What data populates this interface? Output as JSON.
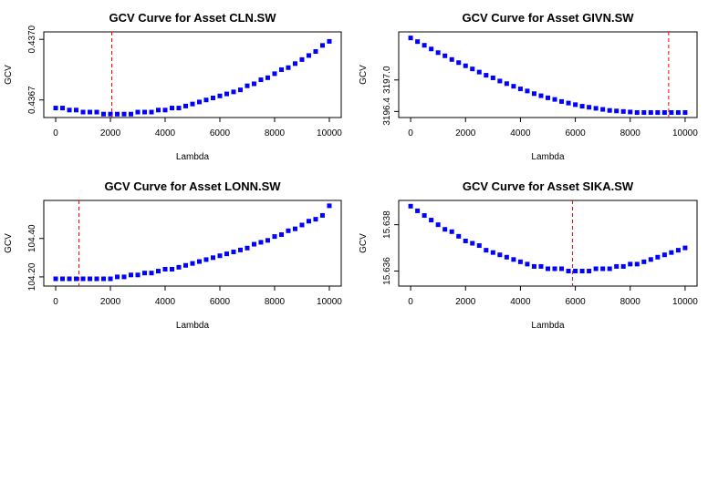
{
  "chart_data": [
    {
      "type": "scatter",
      "title": "GCV Curve for Asset CLN.SW",
      "xlabel": "Lambda",
      "ylabel": "GCV",
      "xlim": [
        0,
        10000
      ],
      "ylim": [
        0.43663,
        0.43702
      ],
      "x_ticks": [
        "0",
        "2000",
        "4000",
        "6000",
        "8000",
        "10000"
      ],
      "y_ticks": [
        {
          "value": 0.4367,
          "label": "0.4367"
        },
        {
          "value": 0.437,
          "label": "0.4370"
        }
      ],
      "point_color": "#0000ff",
      "vline": {
        "x": 2050,
        "color": "#ff0000"
      },
      "series": [
        {
          "x": [
            0,
            250,
            500,
            750,
            1000,
            1250,
            1500,
            1750,
            2000,
            2250,
            2500,
            2750,
            3000,
            3250,
            3500,
            3750,
            4000,
            4250,
            4500,
            4750,
            5000,
            5250,
            5500,
            5750,
            6000,
            6250,
            6500,
            6750,
            7000,
            7250,
            7500,
            7750,
            8000,
            8250,
            8500,
            8750,
            9000,
            9250,
            9500,
            9750,
            10000
          ],
          "y": [
            0.43666,
            0.43666,
            0.43665,
            0.43665,
            0.43664,
            0.43664,
            0.43664,
            0.43663,
            0.43663,
            0.43663,
            0.43663,
            0.43663,
            0.43664,
            0.43664,
            0.43664,
            0.43665,
            0.43665,
            0.43666,
            0.43666,
            0.43667,
            0.43668,
            0.43669,
            0.4367,
            0.43671,
            0.43672,
            0.43673,
            0.43674,
            0.43675,
            0.43677,
            0.43678,
            0.4368,
            0.43681,
            0.43683,
            0.43685,
            0.43686,
            0.43688,
            0.4369,
            0.43692,
            0.43694,
            0.43697,
            0.43699
          ]
        }
      ]
    },
    {
      "type": "scatter",
      "title": "GCV Curve for Asset GIVN.SW",
      "xlabel": "Lambda",
      "ylabel": "GCV",
      "xlim": [
        0,
        10000
      ],
      "ylim": [
        3196.35,
        3197.85
      ],
      "x_ticks": [
        "0",
        "2000",
        "4000",
        "6000",
        "8000",
        "10000"
      ],
      "y_ticks": [
        {
          "value": 3196.4,
          "label": "3196.4"
        },
        {
          "value": 3197.0,
          "label": "3197.0"
        }
      ],
      "point_color": "#0000ff",
      "vline": {
        "x": 9400,
        "color": "#ff0000"
      },
      "series": [
        {
          "x": [
            0,
            250,
            500,
            750,
            1000,
            1250,
            1500,
            1750,
            2000,
            2250,
            2500,
            2750,
            3000,
            3250,
            3500,
            3750,
            4000,
            4250,
            4500,
            4750,
            5000,
            5250,
            5500,
            5750,
            6000,
            6250,
            6500,
            6750,
            7000,
            7250,
            7500,
            7750,
            8000,
            8250,
            8500,
            8750,
            9000,
            9250,
            9500,
            9750,
            10000
          ],
          "y": [
            3197.8,
            3197.73,
            3197.66,
            3197.59,
            3197.52,
            3197.46,
            3197.39,
            3197.33,
            3197.27,
            3197.21,
            3197.15,
            3197.09,
            3197.04,
            3196.98,
            3196.93,
            3196.88,
            3196.83,
            3196.79,
            3196.74,
            3196.7,
            3196.66,
            3196.63,
            3196.59,
            3196.56,
            3196.53,
            3196.5,
            3196.48,
            3196.46,
            3196.44,
            3196.42,
            3196.41,
            3196.4,
            3196.39,
            3196.38,
            3196.38,
            3196.38,
            3196.38,
            3196.38,
            3196.38,
            3196.38,
            3196.38
          ]
        }
      ]
    },
    {
      "type": "scatter",
      "title": "GCV Curve for Asset LONN.SW",
      "xlabel": "Lambda",
      "ylabel": "GCV",
      "xlim": [
        0,
        10000
      ],
      "ylim": [
        104.17,
        104.58
      ],
      "x_ticks": [
        "0",
        "2000",
        "4000",
        "6000",
        "8000",
        "10000"
      ],
      "y_ticks": [
        {
          "value": 104.2,
          "label": "104.20"
        },
        {
          "value": 104.4,
          "label": "104.40"
        }
      ],
      "point_color": "#0000ff",
      "vline": {
        "x": 850,
        "color": "#ff0000"
      },
      "series": [
        {
          "x": [
            0,
            250,
            500,
            750,
            1000,
            1250,
            1500,
            1750,
            2000,
            2250,
            2500,
            2750,
            3000,
            3250,
            3500,
            3750,
            4000,
            4250,
            4500,
            4750,
            5000,
            5250,
            5500,
            5750,
            6000,
            6250,
            6500,
            6750,
            7000,
            7250,
            7500,
            7750,
            8000,
            8250,
            8500,
            8750,
            9000,
            9250,
            9500,
            9750,
            10000
          ],
          "y": [
            104.19,
            104.19,
            104.19,
            104.19,
            104.19,
            104.19,
            104.19,
            104.19,
            104.19,
            104.2,
            104.2,
            104.21,
            104.21,
            104.22,
            104.22,
            104.23,
            104.24,
            104.24,
            104.25,
            104.26,
            104.27,
            104.28,
            104.29,
            104.3,
            104.31,
            104.32,
            104.33,
            104.34,
            104.35,
            104.37,
            104.38,
            104.39,
            104.41,
            104.42,
            104.44,
            104.45,
            104.47,
            104.49,
            104.5,
            104.52,
            104.57
          ]
        }
      ]
    },
    {
      "type": "scatter",
      "title": "GCV Curve for Asset SIKA.SW",
      "xlabel": "Lambda",
      "ylabel": "GCV",
      "xlim": [
        0,
        10000
      ],
      "ylim": [
        15.6355,
        15.6389
      ],
      "x_ticks": [
        "0",
        "2000",
        "4000",
        "6000",
        "8000",
        "10000"
      ],
      "y_ticks": [
        {
          "value": 15.636,
          "label": "15.636"
        },
        {
          "value": 15.638,
          "label": "15.638"
        }
      ],
      "point_color": "#0000ff",
      "vline": {
        "x": 5900,
        "color": "#ff0000"
      },
      "series": [
        {
          "x": [
            0,
            250,
            500,
            750,
            1000,
            1250,
            1500,
            1750,
            2000,
            2250,
            2500,
            2750,
            3000,
            3250,
            3500,
            3750,
            4000,
            4250,
            4500,
            4750,
            5000,
            5250,
            5500,
            5750,
            6000,
            6250,
            6500,
            6750,
            7000,
            7250,
            7500,
            7750,
            8000,
            8250,
            8500,
            8750,
            9000,
            9250,
            9500,
            9750,
            10000
          ],
          "y": [
            15.6388,
            15.6386,
            15.6384,
            15.6382,
            15.638,
            15.6378,
            15.6377,
            15.6375,
            15.6373,
            15.6372,
            15.6371,
            15.6369,
            15.6368,
            15.6367,
            15.6366,
            15.6365,
            15.6364,
            15.6363,
            15.6362,
            15.6362,
            15.6361,
            15.6361,
            15.6361,
            15.636,
            15.636,
            15.636,
            15.636,
            15.6361,
            15.6361,
            15.6361,
            15.6362,
            15.6362,
            15.6363,
            15.6363,
            15.6364,
            15.6365,
            15.6366,
            15.6367,
            15.6368,
            15.6369,
            15.637
          ]
        }
      ]
    }
  ]
}
